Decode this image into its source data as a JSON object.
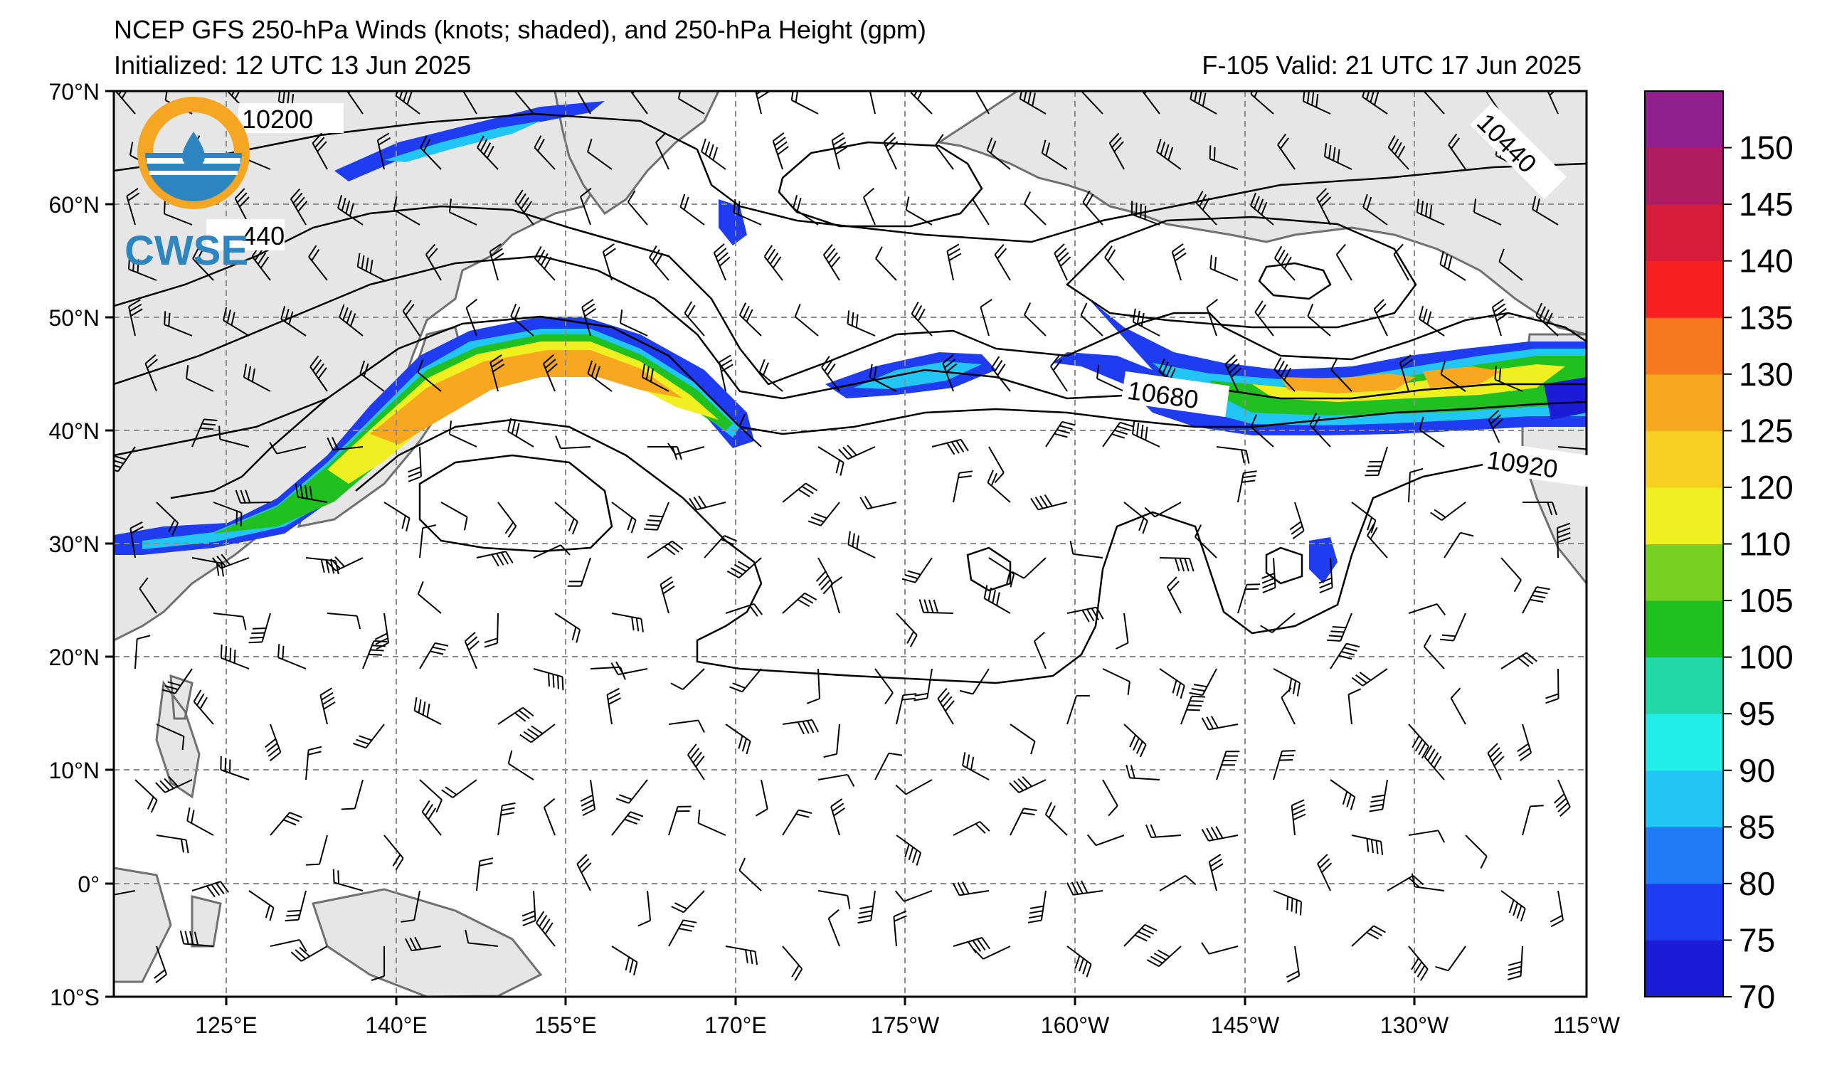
{
  "header": {
    "title": "NCEP GFS 250-hPa Winds (knots; shaded), and 250-hPa Height (gpm)",
    "initialized": "Initialized: 12 UTC 13 Jun 2025",
    "valid": "F-105  Valid: 21 UTC 17 Jun 2025"
  },
  "logo": {
    "text": "CWSE",
    "ring_color": "#f5a623",
    "water_color": "#2e86c1"
  },
  "map": {
    "lat_labels": [
      "70°N",
      "60°N",
      "50°N",
      "40°N",
      "30°N",
      "20°N",
      "10°N",
      "0°",
      "10°S"
    ],
    "lon_labels": [
      "125°E",
      "140°E",
      "155°E",
      "170°E",
      "175°W",
      "160°W",
      "145°W",
      "130°W",
      "115°W"
    ],
    "contour_labels": [
      "10200",
      "10440",
      "10440",
      "10680",
      "10920"
    ],
    "land_color": "#e6e6e6",
    "ocean_color": "#ffffff"
  },
  "colorbar": {
    "ticks": [
      "70",
      "75",
      "80",
      "85",
      "90",
      "95",
      "100",
      "105",
      "110",
      "120",
      "125",
      "130",
      "135",
      "140",
      "145",
      "150"
    ],
    "colors": [
      "#1c1cd6",
      "#1f3cf0",
      "#1f7cf5",
      "#22c6f5",
      "#22eee8",
      "#22d8a8",
      "#20c020",
      "#78d020",
      "#f0f020",
      "#f8d020",
      "#f8a820",
      "#f87820",
      "#f82020",
      "#d81c3c",
      "#b01c60",
      "#902090"
    ]
  }
}
